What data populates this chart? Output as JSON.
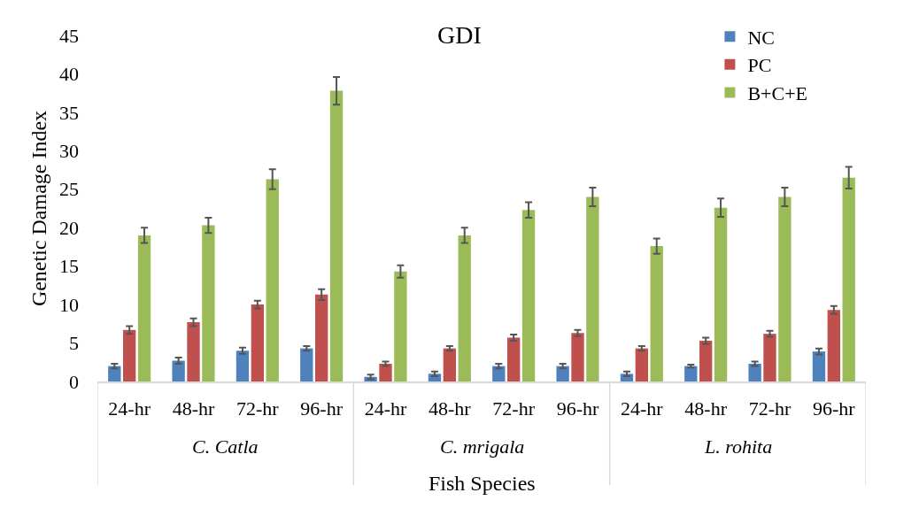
{
  "chart_data": {
    "type": "bar",
    "title": "GDI",
    "xlabel": "Fish Species",
    "ylabel": "Genetic Damage Index",
    "categories": [
      "24-hr",
      "48-hr",
      "72-hr",
      "96-hr",
      "24-hr",
      "48-hr",
      "72-hr",
      "96-hr",
      "24-hr",
      "48-hr",
      "72-hr",
      "96-hr"
    ],
    "annotations": [
      "C. Catla",
      "C. mrigala",
      "L. rohita"
    ],
    "series": [
      {
        "name": "NC",
        "color": "#4f81bd",
        "values": [
          2.0,
          2.7,
          4.0,
          4.3,
          0.6,
          1.0,
          2.0,
          2.0,
          1.0,
          2.0,
          2.3,
          3.9
        ],
        "errors": [
          0.3,
          0.4,
          0.4,
          0.3,
          0.3,
          0.3,
          0.3,
          0.3,
          0.3,
          0.2,
          0.3,
          0.4
        ]
      },
      {
        "name": "PC",
        "color": "#c0504d",
        "values": [
          6.7,
          7.7,
          10.0,
          11.3,
          2.3,
          4.3,
          5.7,
          6.3,
          4.3,
          5.3,
          6.2,
          9.3
        ],
        "errors": [
          0.5,
          0.5,
          0.5,
          0.7,
          0.3,
          0.3,
          0.4,
          0.4,
          0.3,
          0.4,
          0.4,
          0.5
        ]
      },
      {
        "name": "B+C+E",
        "color": "#9bbb59",
        "values": [
          19.0,
          20.3,
          26.3,
          37.8,
          14.3,
          19.0,
          22.3,
          24.0,
          17.6,
          22.6,
          24.0,
          26.5
        ],
        "errors": [
          1.0,
          1.0,
          1.3,
          1.8,
          0.8,
          1.0,
          1.0,
          1.2,
          1.0,
          1.2,
          1.2,
          1.4
        ]
      }
    ],
    "ylim": [
      0,
      45
    ],
    "yticks": [
      0,
      5,
      10,
      15,
      20,
      25,
      30,
      35,
      40,
      45
    ],
    "grid": false,
    "legend": "top right"
  }
}
